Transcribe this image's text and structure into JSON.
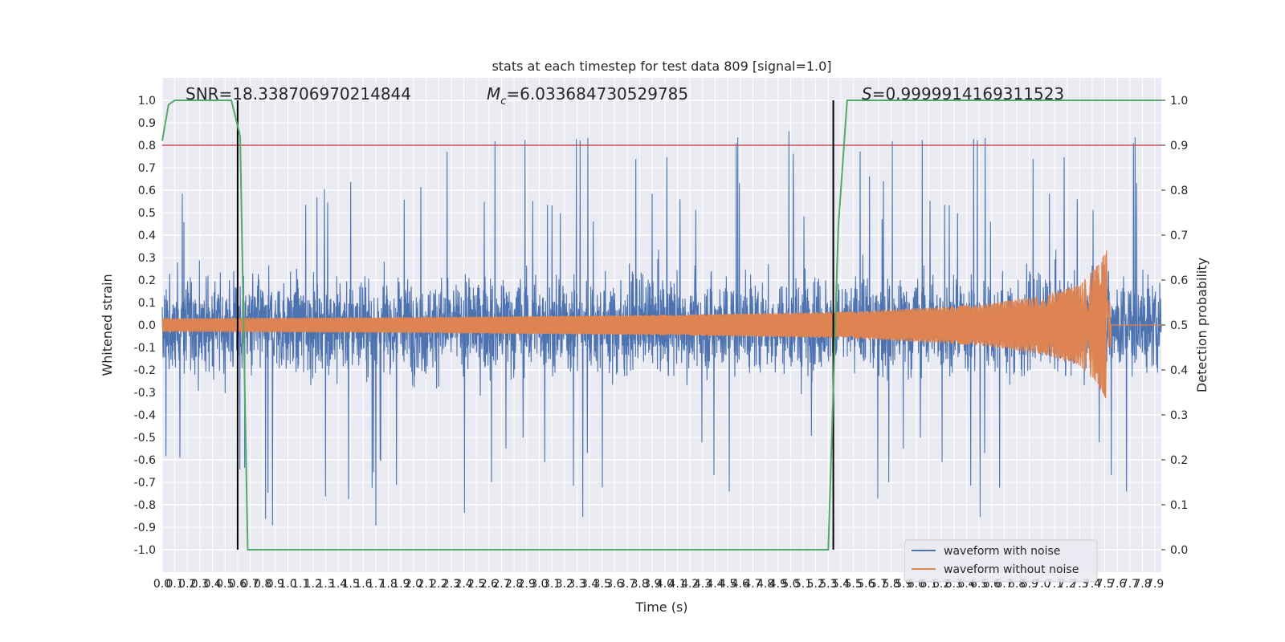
{
  "chart_data": {
    "type": "line",
    "title": "stats at each timestep for test data 809 [signal=1.0]",
    "xlabel": "Time (s)",
    "ylabel_left": "Whitened strain",
    "ylabel_right": "Detection probability",
    "xlim": [
      0.0,
      7.95
    ],
    "ylim_left": [
      -1.1,
      1.1
    ],
    "ylim_right": [
      -0.05,
      1.05
    ],
    "grid": true,
    "x_tick_labels": [
      "0.0",
      "0.1",
      "0.2",
      "0.3",
      "0.4",
      "0.5",
      "0.6",
      "0.7",
      "0.8",
      "0.9",
      "1.0",
      "1.1",
      "1.2",
      "1.3",
      "1.4",
      "1.5",
      "1.6",
      "1.7",
      "1.8",
      "1.9",
      "2.0",
      "2.1",
      "2.2",
      "2.3",
      "2.4",
      "2.5",
      "2.6",
      "2.7",
      "2.8",
      "2.9",
      "3.0",
      "3.1",
      "3.2",
      "3.3",
      "3.4",
      "3.5",
      "3.6",
      "3.7",
      "3.8",
      "3.9",
      "4.0",
      "4.1",
      "4.2",
      "4.3",
      "4.4",
      "4.5",
      "4.6",
      "4.7",
      "4.8",
      "4.9",
      "5.0",
      "5.1",
      "5.2",
      "5.3",
      "5.4",
      "5.5",
      "5.6",
      "5.7",
      "5.8",
      "5.9",
      "6.0",
      "6.1",
      "6.2",
      "6.3",
      "6.4",
      "6.5",
      "6.6",
      "6.7",
      "6.8",
      "6.9",
      "7.0",
      "7.1",
      "7.2",
      "7.3",
      "7.4",
      "7.5",
      "7.6",
      "7.7",
      "7.8",
      "7.9"
    ],
    "y_left_tick_labels": [
      "1.0",
      "0.9",
      "0.8",
      "0.7",
      "0.6",
      "0.5",
      "0.4",
      "0.3",
      "0.2",
      "0.1",
      "0.0",
      "-0.1",
      "-0.2",
      "-0.3",
      "-0.4",
      "-0.5",
      "-0.6",
      "-0.7",
      "-0.8",
      "-0.9",
      "-1.0"
    ],
    "y_right_tick_labels": [
      "1.0",
      "0.9",
      "0.8",
      "0.7",
      "0.6",
      "0.5",
      "0.4",
      "0.3",
      "0.2",
      "0.1",
      "0.0"
    ],
    "annotations": {
      "snr": "SNR=18.338706970214844",
      "mc_symbol": "M",
      "mc_sub": "c",
      "mc_value": "=6.033684730529785",
      "s_symbol": "S",
      "s_value": "=0.9999914169311523"
    },
    "threshold_right": 0.9,
    "vertical_lines_x": [
      0.6,
      5.34
    ],
    "series": [
      {
        "name": "waveform with noise",
        "axis": "left",
        "color": "#4c72b0",
        "kind": "noise",
        "envelope": 0.35,
        "peak_abs": 0.98
      },
      {
        "name": "waveform without noise",
        "axis": "left",
        "color": "#dd8452",
        "kind": "chirp",
        "amplitude_t": [
          0.0,
          2.0,
          4.0,
          5.5,
          6.5,
          7.0,
          7.3,
          7.45,
          7.52,
          7.53,
          7.95
        ],
        "amplitude_v": [
          0.03,
          0.035,
          0.045,
          0.06,
          0.09,
          0.13,
          0.18,
          0.27,
          0.34,
          0.0,
          0.0
        ]
      },
      {
        "name": "detection probability",
        "axis": "right",
        "color": "#55a868",
        "kind": "line",
        "x": [
          0.0,
          0.05,
          0.1,
          0.55,
          0.62,
          0.68,
          1.0,
          2.0,
          3.0,
          4.0,
          5.0,
          5.3,
          5.38,
          5.45,
          7.95
        ],
        "y": [
          0.91,
          0.99,
          1.0,
          1.0,
          0.92,
          0.0,
          0.0,
          0.0,
          0.0,
          0.0,
          0.0,
          0.0,
          0.72,
          1.0,
          1.0
        ]
      }
    ],
    "legend": {
      "position": "bottom-right",
      "entries": [
        {
          "label": "waveform with noise",
          "color": "#4c72b0"
        },
        {
          "label": "waveform without noise",
          "color": "#dd8452"
        }
      ]
    },
    "colors": {
      "background": "#eaeaf2",
      "grid": "#ffffff",
      "threshold": "#c44e52",
      "vline": "#000000"
    }
  }
}
